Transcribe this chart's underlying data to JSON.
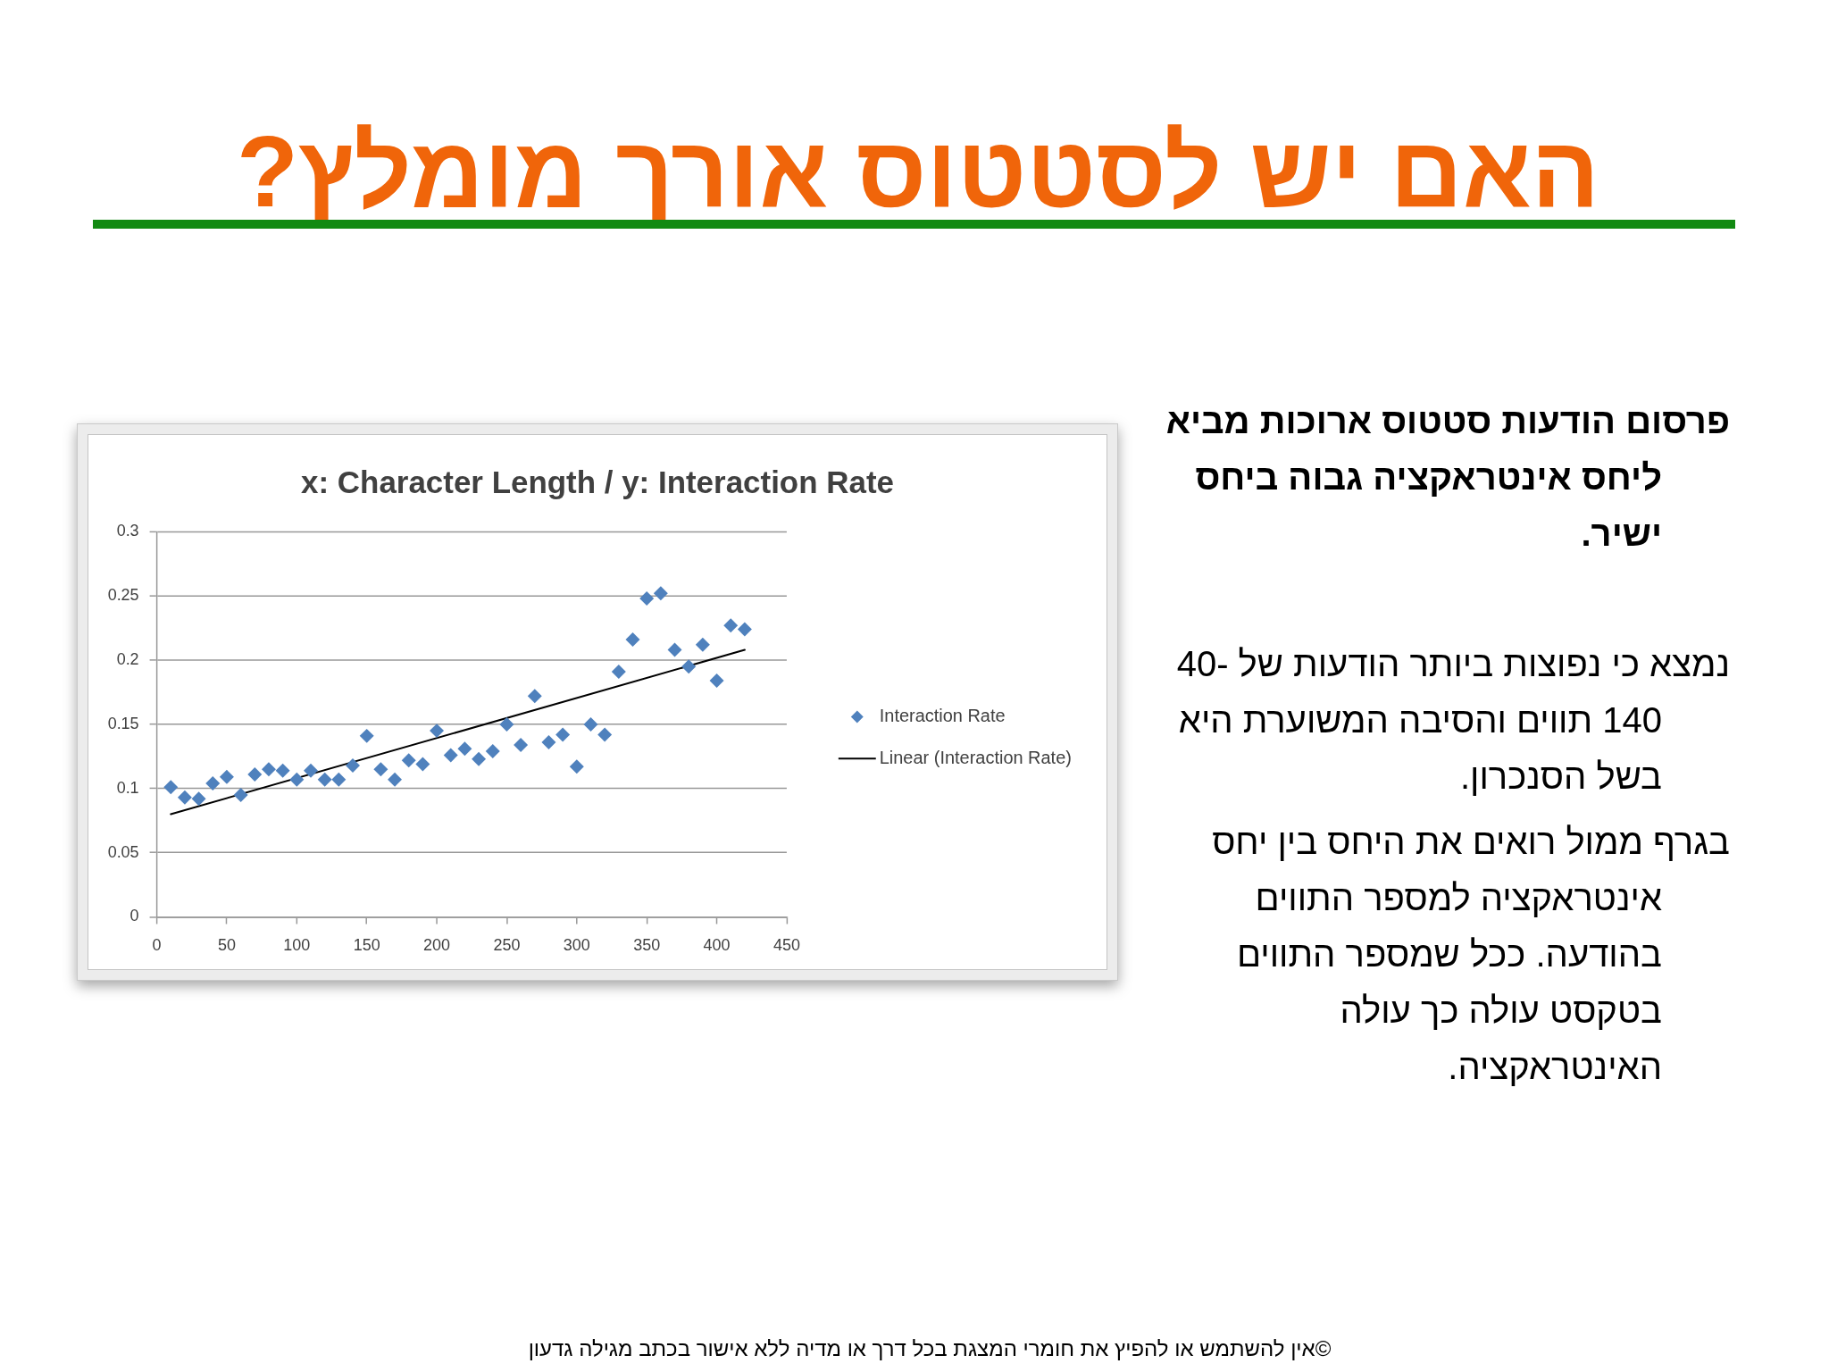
{
  "chart_data": {
    "type": "scatter",
    "title": "האם יש לסטטוס אורך מומלץ?",
    "subtitle": "x: Character Length / y: Interaction Rate",
    "x": [
      10,
      20,
      30,
      40,
      50,
      60,
      70,
      80,
      90,
      100,
      110,
      120,
      130,
      140,
      150,
      160,
      170,
      180,
      190,
      200,
      210,
      220,
      230,
      240,
      250,
      260,
      270,
      280,
      290,
      300,
      310,
      320,
      330,
      340,
      350,
      360,
      370,
      380,
      390,
      400,
      410,
      420
    ],
    "series": [
      {
        "name": "Interaction Rate",
        "color": "#4f81bd",
        "values": [
          0.101,
          0.093,
          0.092,
          0.104,
          0.109,
          0.095,
          0.111,
          0.115,
          0.114,
          0.107,
          0.114,
          0.107,
          0.107,
          0.118,
          0.141,
          0.115,
          0.107,
          0.122,
          0.119,
          0.145,
          0.126,
          0.131,
          0.123,
          0.129,
          0.15,
          0.134,
          0.172,
          0.136,
          0.142,
          0.117,
          0.15,
          0.142,
          0.191,
          0.216,
          0.248,
          0.252,
          0.208,
          0.195,
          0.212,
          0.184,
          0.227,
          0.224
        ]
      },
      {
        "name": "Linear (Interaction Rate)",
        "type": "line",
        "color": "#000000",
        "x": [
          10,
          420
        ],
        "values": [
          0.08,
          0.208
        ],
        "marker": "none"
      }
    ],
    "xlim": [
      0,
      450
    ],
    "xticks": [
      0,
      50,
      100,
      150,
      200,
      250,
      300,
      350,
      400,
      450
    ],
    "ylim": [
      0,
      0.3
    ],
    "yticks": [
      0,
      0.05,
      0.1,
      0.15,
      0.2,
      0.25,
      0.3
    ],
    "grid": "y",
    "legend": "right",
    "marker": "diamond",
    "annotations": [
      "פרסום הודעות סטטוס ארוכות מביא ליחס אינטראקציה גבוה ביחס ישיר.",
      "נמצא כי נפוצות ביותר הודעות של 40-140 תווים והסיבה המשוערת היא בשל הסנכרון.",
      "בגרף ממול רואים את היחס בין יחס אינטראקציה למספר התווים בהודעה. ככל שמספר התווים בטקסט עולה כך עולה האינטראקציה.",
      "©אין להשתמש או להפיץ את חומרי המצגת בכל דרך או מדיה ללא אישור בכתב מגילה גדעון"
    ]
  }
}
